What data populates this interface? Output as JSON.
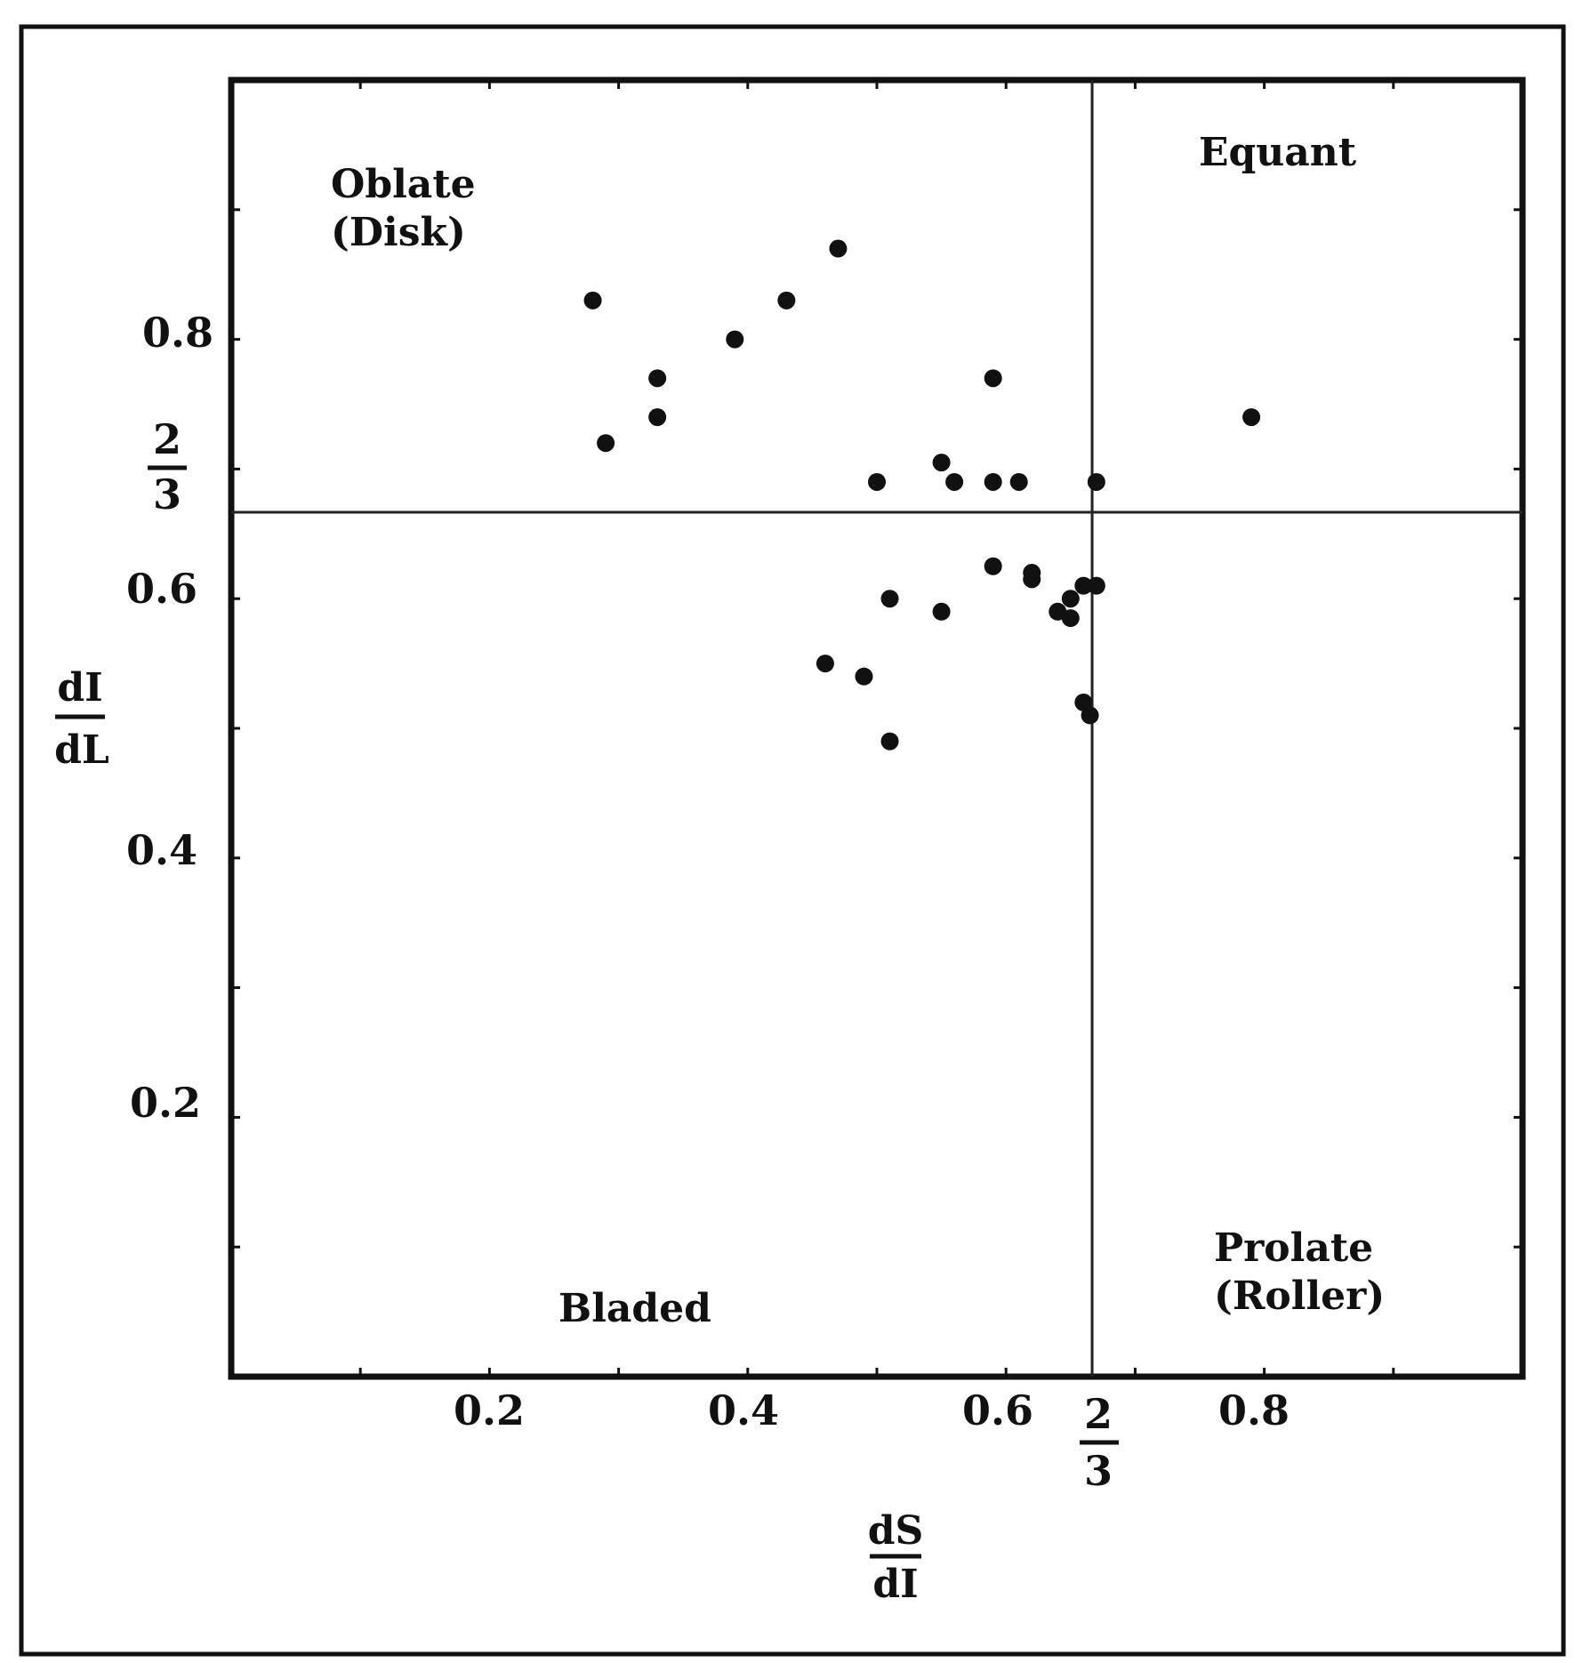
{
  "chart_data": {
    "type": "scatter",
    "title": "",
    "xlabel": {
      "numerator": "dS",
      "denominator": "dI"
    },
    "ylabel": {
      "numerator": "dI",
      "denominator": "dL"
    },
    "xlim": [
      0,
      1
    ],
    "ylim": [
      0,
      1
    ],
    "x_ticks": [
      "0.2",
      "0.4",
      "0.6",
      "0.8"
    ],
    "x_tick_values": [
      0.2,
      0.4,
      0.6,
      0.8
    ],
    "y_ticks": [
      "0.2",
      "0.4",
      "0.6",
      "0.8"
    ],
    "y_tick_values": [
      0.2,
      0.4,
      0.6,
      0.8
    ],
    "x_fraction_tick": {
      "numerator": "2",
      "denominator": "3",
      "value": 0.6667
    },
    "y_fraction_tick": {
      "numerator": "2",
      "denominator": "3",
      "value": 0.6667
    },
    "divider_lines": {
      "x": 0.6667,
      "y": 0.6667
    },
    "region_labels": {
      "oblate": [
        "Oblate",
        "(Disk)"
      ],
      "equant": [
        "Equant"
      ],
      "bladed": [
        "Bladed"
      ],
      "prolate": [
        "Prolate",
        "(Roller)"
      ]
    },
    "grid": false,
    "colors": {
      "points": "#111111",
      "axes": "#111111",
      "dividers": "#222222"
    },
    "points": [
      {
        "x": 0.28,
        "y": 0.83
      },
      {
        "x": 0.47,
        "y": 0.87
      },
      {
        "x": 0.43,
        "y": 0.83
      },
      {
        "x": 0.39,
        "y": 0.8
      },
      {
        "x": 0.33,
        "y": 0.77
      },
      {
        "x": 0.33,
        "y": 0.74
      },
      {
        "x": 0.29,
        "y": 0.72
      },
      {
        "x": 0.59,
        "y": 0.77
      },
      {
        "x": 0.79,
        "y": 0.74
      },
      {
        "x": 0.5,
        "y": 0.69
      },
      {
        "x": 0.55,
        "y": 0.705
      },
      {
        "x": 0.56,
        "y": 0.69
      },
      {
        "x": 0.59,
        "y": 0.69
      },
      {
        "x": 0.61,
        "y": 0.69
      },
      {
        "x": 0.67,
        "y": 0.69
      },
      {
        "x": 0.51,
        "y": 0.6
      },
      {
        "x": 0.59,
        "y": 0.625
      },
      {
        "x": 0.62,
        "y": 0.62
      },
      {
        "x": 0.62,
        "y": 0.615
      },
      {
        "x": 0.55,
        "y": 0.59
      },
      {
        "x": 0.64,
        "y": 0.59
      },
      {
        "x": 0.65,
        "y": 0.6
      },
      {
        "x": 0.65,
        "y": 0.585
      },
      {
        "x": 0.66,
        "y": 0.61
      },
      {
        "x": 0.67,
        "y": 0.61
      },
      {
        "x": 0.46,
        "y": 0.55
      },
      {
        "x": 0.49,
        "y": 0.54
      },
      {
        "x": 0.51,
        "y": 0.49
      },
      {
        "x": 0.66,
        "y": 0.52
      },
      {
        "x": 0.665,
        "y": 0.51
      }
    ]
  }
}
